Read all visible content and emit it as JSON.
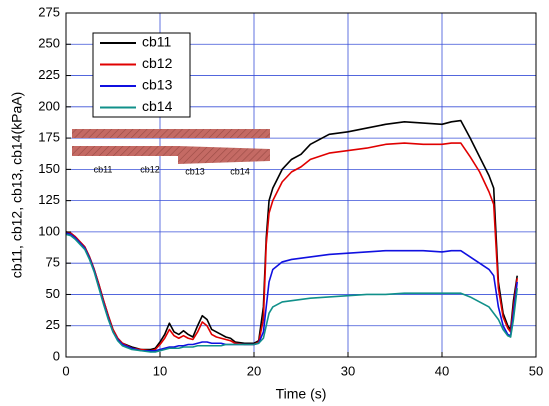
{
  "chart_data": {
    "type": "line",
    "xlabel": "Time (s)",
    "ylabel": "cb11, cb12, cb13, cb14(kPaA)",
    "xlim": [
      0,
      50
    ],
    "xticks": [
      0,
      10,
      20,
      30,
      40,
      50
    ],
    "ylim": [
      0,
      275
    ],
    "yticks": [
      0,
      25,
      50,
      75,
      100,
      125,
      150,
      175,
      200,
      225,
      250,
      275
    ],
    "grid": true,
    "grid_color": "#3a50d8",
    "legend": "upper left",
    "inset_labels": [
      "cb11",
      "cb12",
      "cb13",
      "cb14"
    ],
    "x": [
      0,
      0.5,
      1,
      1.5,
      2,
      2.5,
      3,
      3.5,
      4,
      4.5,
      5,
      5.5,
      6,
      7,
      8,
      9,
      9.5,
      10,
      10.5,
      11,
      11.5,
      12,
      12.5,
      13,
      13.5,
      14,
      14.5,
      15,
      15.5,
      16,
      16.5,
      17,
      17.5,
      18,
      19,
      20,
      20.5,
      21,
      21.3,
      21.6,
      22,
      23,
      24,
      25,
      26,
      28,
      30,
      32,
      34,
      36,
      38,
      40,
      41,
      42,
      43,
      44,
      45,
      45.5,
      46,
      46.5,
      47,
      47.3,
      47.6,
      48
    ],
    "series": [
      {
        "name": "cb11",
        "color": "#000000",
        "values": [
          100,
          99,
          96,
          92,
          88,
          80,
          70,
          58,
          45,
          33,
          22,
          15,
          11,
          8,
          6,
          6,
          7,
          12,
          18,
          27,
          20,
          18,
          21,
          18,
          16,
          25,
          33,
          30,
          22,
          20,
          18,
          16,
          15,
          12,
          11,
          11,
          13,
          40,
          95,
          125,
          135,
          150,
          158,
          162,
          170,
          178,
          180,
          183,
          186,
          188,
          187,
          186,
          188,
          189,
          175,
          160,
          145,
          135,
          60,
          35,
          25,
          22,
          45,
          65
        ]
      },
      {
        "name": "cb12",
        "color": "#e00000",
        "values": [
          100,
          99,
          96,
          92,
          88,
          80,
          70,
          58,
          45,
          33,
          22,
          15,
          11,
          7,
          6,
          5,
          6,
          10,
          15,
          22,
          17,
          15,
          17,
          15,
          14,
          20,
          28,
          25,
          18,
          16,
          15,
          14,
          13,
          11,
          10,
          10,
          12,
          30,
          90,
          115,
          125,
          140,
          148,
          152,
          158,
          163,
          165,
          167,
          170,
          171,
          170,
          170,
          171,
          171,
          160,
          148,
          132,
          122,
          55,
          32,
          23,
          20,
          40,
          63
        ]
      },
      {
        "name": "cb13",
        "color": "#1010e0",
        "values": [
          99,
          98,
          95,
          91,
          87,
          79,
          69,
          56,
          43,
          31,
          20,
          14,
          10,
          7,
          5,
          5,
          5,
          6,
          7,
          8,
          8,
          9,
          9,
          10,
          10,
          11,
          12,
          12,
          11,
          11,
          11,
          10,
          10,
          10,
          10,
          10,
          11,
          20,
          40,
          60,
          70,
          76,
          78,
          79,
          80,
          82,
          83,
          84,
          85,
          85,
          85,
          84,
          85,
          85,
          80,
          75,
          70,
          65,
          40,
          25,
          18,
          17,
          35,
          60
        ]
      },
      {
        "name": "cb14",
        "color": "#10908a",
        "values": [
          98,
          97,
          94,
          90,
          86,
          78,
          68,
          55,
          42,
          30,
          20,
          13,
          9,
          6,
          5,
          4,
          4,
          5,
          6,
          7,
          7,
          7,
          8,
          8,
          8,
          9,
          9,
          9,
          9,
          9,
          9,
          10,
          10,
          10,
          10,
          10,
          11,
          15,
          25,
          35,
          40,
          44,
          45,
          46,
          47,
          48,
          49,
          50,
          50,
          51,
          51,
          51,
          51,
          51,
          48,
          44,
          40,
          35,
          30,
          22,
          17,
          16,
          30,
          55
        ]
      }
    ]
  }
}
